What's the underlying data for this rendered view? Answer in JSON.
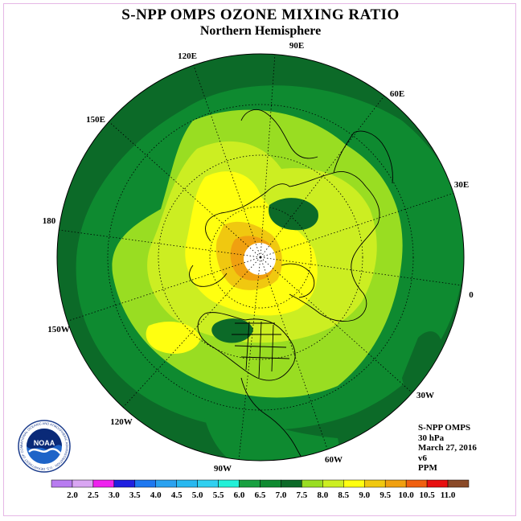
{
  "title": "S-NPP OMPS OZONE MIXING RATIO",
  "subtitle": "Northern Hemisphere",
  "longitude_labels": [
    "90E",
    "60E",
    "30E",
    "0",
    "30W",
    "60W",
    "90W",
    "120W",
    "150W",
    "180",
    "150E",
    "120E"
  ],
  "info": {
    "instrument": "S-NPP OMPS",
    "level": "30 hPa",
    "date": "March 27, 2016",
    "version": "v6",
    "units": "PPM"
  },
  "logo": {
    "text": "NOAA",
    "ring_text": "NATIONAL OCEANIC AND ATMOSPHERIC ADMINISTRATION · U.S. DEPARTMENT OF COMMERCE"
  },
  "colorbar": {
    "labels": [
      "2.0",
      "2.5",
      "3.0",
      "3.5",
      "4.0",
      "4.5",
      "5.0",
      "5.5",
      "6.0",
      "6.5",
      "7.0",
      "7.5",
      "8.0",
      "8.5",
      "9.0",
      "9.5",
      "10.0",
      "10.5",
      "11.0"
    ],
    "colors": [
      "#b87cf0",
      "#d9a6f2",
      "#ee22ee",
      "#2020e0",
      "#1e78f0",
      "#2aa2f0",
      "#28b8f0",
      "#30d0f0",
      "#22f0d8",
      "#18a040",
      "#0e8a30",
      "#0c6a28",
      "#99dd22",
      "#ccee22",
      "#ffff10",
      "#f0c810",
      "#f0a010",
      "#f06010",
      "#e81010",
      "#8a4a28"
    ]
  },
  "map_colors": {
    "level_6_5": "#0e8a30",
    "level_7_0": "#0c6a28",
    "level_7_5": "#99dd22",
    "level_8_0": "#ccee22",
    "level_8_5": "#ffff10",
    "level_9_0": "#f0c810",
    "level_9_5": "#f0a010",
    "no_data": "#ffffff"
  }
}
